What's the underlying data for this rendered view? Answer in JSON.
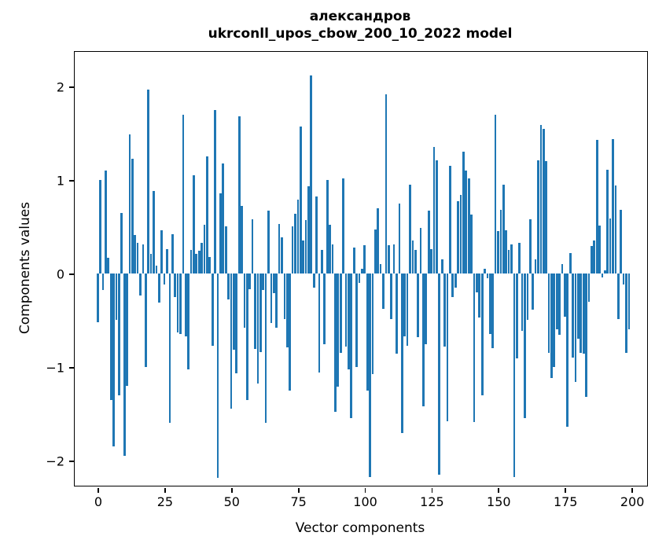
{
  "figure": {
    "title_line1": "александров",
    "title_line2": "ukrconll_upos_cbow_200_10_2022 model",
    "xlabel": "Vector components",
    "ylabel": "Components values"
  },
  "chart_data": {
    "type": "bar",
    "title": "александров — ukrconll_upos_cbow_200_10_2022 model",
    "xlabel": "Vector components",
    "ylabel": "Components values",
    "bar_color": "#1f77b4",
    "grid": false,
    "legend": null,
    "n_components": 200,
    "xlim": [
      -8.6,
      205.8
    ],
    "ylim": [
      -2.27,
      2.37
    ],
    "xticks": [
      0,
      25,
      50,
      75,
      100,
      125,
      150,
      175,
      200
    ],
    "yticks": [
      -2,
      -1,
      0,
      1,
      2
    ],
    "bar_width_units": 0.8,
    "values": [
      -0.52,
      1.0,
      -0.18,
      1.1,
      0.17,
      -1.35,
      -1.85,
      -0.5,
      -1.3,
      0.65,
      -1.95,
      -1.2,
      1.49,
      1.23,
      0.41,
      0.33,
      -0.24,
      0.31,
      -1.0,
      1.97,
      0.21,
      0.88,
      0.08,
      -0.31,
      0.46,
      -0.12,
      0.26,
      -1.6,
      0.42,
      -0.25,
      -0.63,
      -0.65,
      1.7,
      -0.67,
      -1.03,
      0.25,
      1.05,
      0.21,
      0.24,
      0.33,
      0.52,
      1.25,
      0.18,
      -0.77,
      1.75,
      -2.19,
      0.86,
      1.18,
      0.5,
      -0.28,
      -1.45,
      -0.82,
      -1.07,
      1.68,
      0.72,
      -0.58,
      -1.35,
      -0.17,
      0.58,
      -0.81,
      -1.18,
      -0.84,
      -0.18,
      -1.6,
      0.67,
      -0.53,
      -0.21,
      -0.58,
      0.53,
      0.39,
      -0.49,
      -0.79,
      -1.25,
      0.5,
      0.64,
      0.79,
      1.57,
      0.35,
      0.57,
      0.93,
      2.12,
      -0.15,
      0.82,
      -1.06,
      0.25,
      -0.76,
      1.0,
      0.52,
      0.31,
      -1.48,
      -1.21,
      -0.85,
      1.02,
      -0.78,
      -1.03,
      -1.55,
      0.28,
      -1.0,
      -0.1,
      0.05,
      0.3,
      -1.25,
      -2.18,
      -1.08,
      0.47,
      0.7,
      0.1,
      -0.38,
      1.92,
      0.3,
      -0.49,
      0.31,
      -0.86,
      0.75,
      -1.71,
      -0.67,
      -0.77,
      0.95,
      0.35,
      0.25,
      -0.68,
      0.49,
      -1.42,
      -0.76,
      0.67,
      0.26,
      1.35,
      1.21,
      -2.15,
      0.15,
      -0.78,
      -1.58,
      1.15,
      -0.25,
      -0.15,
      0.77,
      0.84,
      1.3,
      1.1,
      1.02,
      0.63,
      -1.59,
      -0.2,
      -0.47,
      -1.3,
      0.05,
      -0.05,
      -0.65,
      -0.8,
      1.7,
      0.45,
      0.68,
      0.95,
      0.46,
      0.25,
      0.31,
      -2.18,
      -0.91,
      0.33,
      -0.61,
      -1.55,
      -0.5,
      0.58,
      -0.39,
      0.15,
      1.21,
      1.59,
      1.55,
      1.2,
      -0.85,
      -1.12,
      -1.0,
      -0.6,
      -0.66,
      0.1,
      -0.46,
      -1.64,
      0.22,
      -0.9,
      -1.16,
      -0.7,
      -0.85,
      -0.86,
      -1.32,
      -0.3,
      0.29,
      0.35,
      1.43,
      0.51,
      -0.04,
      0.03,
      1.11,
      0.59,
      1.44,
      0.94,
      -0.49,
      0.68,
      -0.12,
      -0.85,
      -0.6
    ]
  }
}
